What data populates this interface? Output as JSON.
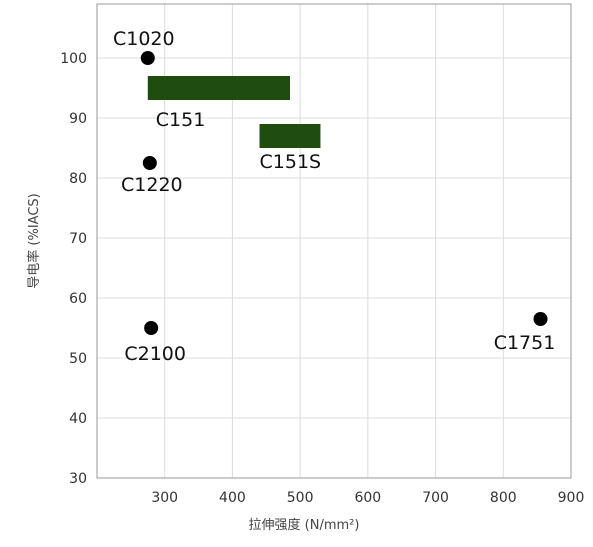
{
  "chart_data": {
    "type": "scatter",
    "title": "",
    "xlabel": "拉伸强度 (N/mm²)",
    "ylabel": "导电率 (%IACS)",
    "xlim": [
      200,
      900
    ],
    "ylim": [
      30,
      109
    ],
    "x_ticks": [
      300,
      400,
      500,
      600,
      700,
      800,
      900
    ],
    "y_ticks": [
      30,
      40,
      50,
      60,
      70,
      80,
      90,
      100
    ],
    "grid": true,
    "points": [
      {
        "label": "C1020",
        "x": 275,
        "y": 100
      },
      {
        "label": "C1220",
        "x": 278,
        "y": 82.5
      },
      {
        "label": "C2100",
        "x": 280,
        "y": 55
      },
      {
        "label": "C1751",
        "x": 855,
        "y": 56.5
      }
    ],
    "ranges": [
      {
        "label": "C151",
        "x_min": 275,
        "x_max": 485,
        "y_min": 93,
        "y_max": 97,
        "color": "#1e4d0f"
      },
      {
        "label": "C151S",
        "x_min": 440,
        "x_max": 530,
        "y_min": 85,
        "y_max": 89,
        "color": "#1e4d0f"
      }
    ]
  }
}
